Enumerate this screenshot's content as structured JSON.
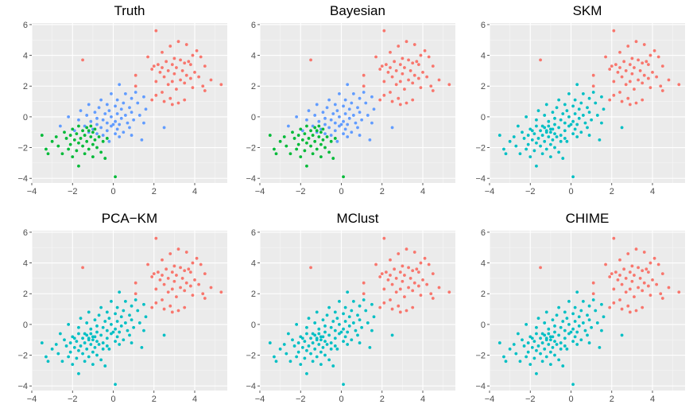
{
  "figure": {
    "background": "#ffffff",
    "panel_background": "#ebebeb"
  },
  "cluster_colors": {
    "A": "#F8766D",
    "B": "#619CFF",
    "C": "#00BA38",
    "C2": "#00BFC4"
  },
  "chart_data": [
    {
      "type": "scatter",
      "title": "Truth",
      "xlim": [
        -4,
        5.6
      ],
      "ylim": [
        -4.3,
        6.1
      ],
      "xticks": [
        -4,
        -2,
        0,
        2,
        4
      ],
      "yticks": [
        -4,
        -2,
        0,
        2,
        4,
        6
      ],
      "xtick_labels": [
        "−4",
        "−2",
        "0",
        "2",
        "4"
      ],
      "ytick_labels": [
        "−4",
        "−2",
        "0",
        "2",
        "4",
        "6"
      ],
      "grid": true,
      "color_map": {
        "A": "#F8766D",
        "B": "#619CFF",
        "C": "#00BA38"
      }
    },
    {
      "type": "scatter",
      "title": "Bayesian",
      "xlim": [
        -4,
        5.6
      ],
      "ylim": [
        -4.3,
        6.1
      ],
      "xticks": [
        -4,
        -2,
        0,
        2,
        4
      ],
      "yticks": [
        -4,
        -2,
        0,
        2,
        4,
        6
      ],
      "xtick_labels": [
        "−4",
        "−2",
        "0",
        "2",
        "4"
      ],
      "ytick_labels": [
        "−4",
        "−2",
        "0",
        "2",
        "4",
        "6"
      ],
      "grid": true,
      "color_map": {
        "A": "#F8766D",
        "B": "#619CFF",
        "C": "#00BA38"
      }
    },
    {
      "type": "scatter",
      "title": "SKM",
      "xlim": [
        -4,
        5.6
      ],
      "ylim": [
        -4.3,
        6.1
      ],
      "xticks": [
        -4,
        -2,
        0,
        2,
        4
      ],
      "yticks": [
        -4,
        -2,
        0,
        2,
        4,
        6
      ],
      "xtick_labels": [
        "−4",
        "−2",
        "0",
        "2",
        "4"
      ],
      "ytick_labels": [
        "−4",
        "−2",
        "0",
        "2",
        "4",
        "6"
      ],
      "grid": true,
      "color_map": {
        "A": "#F8766D",
        "B": "#00BFC4",
        "C": "#00BFC4"
      }
    },
    {
      "type": "scatter",
      "title": "PCA−KM",
      "xlim": [
        -4,
        5.6
      ],
      "ylim": [
        -4.3,
        6.1
      ],
      "xticks": [
        -4,
        -2,
        0,
        2,
        4
      ],
      "yticks": [
        -4,
        -2,
        0,
        2,
        4,
        6
      ],
      "xtick_labels": [
        "−4",
        "−2",
        "0",
        "2",
        "4"
      ],
      "ytick_labels": [
        "−4",
        "−2",
        "0",
        "2",
        "4",
        "6"
      ],
      "grid": true,
      "color_map": {
        "A": "#F8766D",
        "B": "#00BFC4",
        "C": "#00BFC4"
      }
    },
    {
      "type": "scatter",
      "title": "MClust",
      "xlim": [
        -4,
        5.6
      ],
      "ylim": [
        -4.3,
        6.1
      ],
      "xticks": [
        -4,
        -2,
        0,
        2,
        4
      ],
      "yticks": [
        -4,
        -2,
        0,
        2,
        4,
        6
      ],
      "xtick_labels": [
        "−4",
        "−2",
        "0",
        "2",
        "4"
      ],
      "ytick_labels": [
        "−4",
        "−2",
        "0",
        "2",
        "4",
        "6"
      ],
      "grid": true,
      "color_map": {
        "A": "#F8766D",
        "B": "#00BFC4",
        "C": "#00BFC4"
      }
    },
    {
      "type": "scatter",
      "title": "CHIME",
      "xlim": [
        -4,
        5.6
      ],
      "ylim": [
        -4.3,
        6.1
      ],
      "xticks": [
        -4,
        -2,
        0,
        2,
        4
      ],
      "yticks": [
        -4,
        -2,
        0,
        2,
        4,
        6
      ],
      "xtick_labels": [
        "−4",
        "−2",
        "0",
        "2",
        "4"
      ],
      "ytick_labels": [
        "−4",
        "−2",
        "0",
        "2",
        "4",
        "6"
      ],
      "grid": true,
      "color_map": {
        "A": "#F8766D",
        "B": "#00BFC4",
        "C": "#00BFC4"
      }
    }
  ],
  "points": [
    [
      2.1,
      5.6,
      "A"
    ],
    [
      3.2,
      4.9,
      "A"
    ],
    [
      3.6,
      4.7,
      "A"
    ],
    [
      2.8,
      4.6,
      "A"
    ],
    [
      4.1,
      4.3,
      "A"
    ],
    [
      2.4,
      4.2,
      "A"
    ],
    [
      3.9,
      4.0,
      "A"
    ],
    [
      1.7,
      3.9,
      "A"
    ],
    [
      4.3,
      3.9,
      "A"
    ],
    [
      3.0,
      3.8,
      "A"
    ],
    [
      3.3,
      3.7,
      "A"
    ],
    [
      3.7,
      3.6,
      "A"
    ],
    [
      2.6,
      3.6,
      "A"
    ],
    [
      -1.5,
      3.7,
      "A"
    ],
    [
      3.5,
      3.5,
      "A"
    ],
    [
      2.2,
      3.4,
      "A"
    ],
    [
      2.9,
      3.4,
      "A"
    ],
    [
      3.8,
      3.4,
      "A"
    ],
    [
      4.5,
      3.3,
      "A"
    ],
    [
      2.0,
      3.3,
      "A"
    ],
    [
      2.4,
      3.2,
      "A"
    ],
    [
      3.1,
      3.2,
      "A"
    ],
    [
      1.9,
      3.1,
      "A"
    ],
    [
      3.4,
      3.0,
      "A"
    ],
    [
      2.7,
      3.0,
      "A"
    ],
    [
      4.0,
      2.9,
      "A"
    ],
    [
      2.3,
      2.9,
      "A"
    ],
    [
      3.0,
      2.8,
      "A"
    ],
    [
      3.6,
      2.7,
      "A"
    ],
    [
      2.5,
      2.6,
      "A"
    ],
    [
      4.2,
      2.6,
      "A"
    ],
    [
      1.1,
      2.7,
      "A"
    ],
    [
      3.8,
      2.5,
      "A"
    ],
    [
      3.3,
      2.4,
      "A"
    ],
    [
      2.9,
      2.3,
      "A"
    ],
    [
      4.8,
      2.4,
      "A"
    ],
    [
      2.1,
      2.3,
      "A"
    ],
    [
      3.5,
      2.2,
      "A"
    ],
    [
      5.3,
      2.1,
      "A"
    ],
    [
      2.7,
      2.1,
      "A"
    ],
    [
      4.4,
      2.0,
      "A"
    ],
    [
      3.9,
      1.9,
      "A"
    ],
    [
      3.1,
      1.8,
      "A"
    ],
    [
      4.5,
      1.7,
      "A"
    ],
    [
      2.4,
      1.6,
      "A"
    ],
    [
      2.1,
      1.4,
      "A"
    ],
    [
      2.8,
      1.2,
      "A"
    ],
    [
      3.5,
      1.1,
      "A"
    ],
    [
      2.5,
      1.0,
      "A"
    ],
    [
      3.2,
      0.9,
      "A"
    ],
    [
      2.9,
      0.8,
      "A"
    ],
    [
      1.9,
      1.1,
      "A"
    ],
    [
      1.1,
      2.0,
      "A"
    ],
    [
      0.3,
      2.1,
      "B"
    ],
    [
      1.1,
      1.6,
      "B"
    ],
    [
      0.6,
      1.5,
      "B"
    ],
    [
      -0.1,
      1.5,
      "B"
    ],
    [
      1.5,
      1.3,
      "B"
    ],
    [
      0.9,
      1.2,
      "B"
    ],
    [
      0.2,
      1.1,
      "B"
    ],
    [
      -0.6,
      1.1,
      "B"
    ],
    [
      1.2,
      0.9,
      "B"
    ],
    [
      0.5,
      0.9,
      "B"
    ],
    [
      -0.3,
      0.8,
      "B"
    ],
    [
      -1.2,
      0.8,
      "B"
    ],
    [
      0.1,
      0.7,
      "B"
    ],
    [
      0.8,
      0.6,
      "B"
    ],
    [
      -0.7,
      0.6,
      "B"
    ],
    [
      1.6,
      0.5,
      "B"
    ],
    [
      0.4,
      0.5,
      "B"
    ],
    [
      -0.2,
      0.4,
      "B"
    ],
    [
      -1.6,
      0.4,
      "B"
    ],
    [
      0.9,
      0.3,
      "B"
    ],
    [
      -0.9,
      0.3,
      "B"
    ],
    [
      0.2,
      0.2,
      "B"
    ],
    [
      -0.4,
      0.2,
      "B"
    ],
    [
      1.3,
      0.1,
      "B"
    ],
    [
      -1.3,
      0.1,
      "B"
    ],
    [
      0.6,
      0.1,
      "B"
    ],
    [
      -0.1,
      0.0,
      "B"
    ],
    [
      -2.2,
      0.0,
      "B"
    ],
    [
      -0.8,
      -0.1,
      "B"
    ],
    [
      0.4,
      -0.1,
      "B"
    ],
    [
      1.0,
      -0.2,
      "B"
    ],
    [
      -0.5,
      -0.2,
      "B"
    ],
    [
      -1.7,
      -0.2,
      "B"
    ],
    [
      0.1,
      -0.3,
      "B"
    ],
    [
      -1.1,
      -0.3,
      "B"
    ],
    [
      0.7,
      -0.4,
      "B"
    ],
    [
      -0.3,
      -0.4,
      "B"
    ],
    [
      1.5,
      -0.4,
      "B"
    ],
    [
      -0.8,
      -0.5,
      "B"
    ],
    [
      0.3,
      -0.5,
      "B"
    ],
    [
      -1.4,
      -0.6,
      "B"
    ],
    [
      -0.1,
      -0.6,
      "B"
    ],
    [
      0.8,
      -0.7,
      "B"
    ],
    [
      -0.6,
      -0.7,
      "B"
    ],
    [
      2.5,
      -0.7,
      "B"
    ],
    [
      0.2,
      -0.8,
      "B"
    ],
    [
      -1.0,
      -0.8,
      "B"
    ],
    [
      -0.3,
      -0.9,
      "B"
    ],
    [
      0.5,
      -1.0,
      "B"
    ],
    [
      -0.8,
      -1.1,
      "B"
    ],
    [
      0.1,
      -1.1,
      "B"
    ],
    [
      -0.5,
      -1.2,
      "B"
    ],
    [
      1.4,
      -1.5,
      "B"
    ],
    [
      0.3,
      -1.3,
      "B"
    ],
    [
      -2.6,
      -0.6,
      "B"
    ],
    [
      -1.9,
      -0.9,
      "B"
    ],
    [
      -0.2,
      -1.6,
      "B"
    ],
    [
      0.9,
      -1.2,
      "B"
    ],
    [
      -1.2,
      -1.0,
      "B"
    ],
    [
      0.0,
      -0.5,
      "B"
    ],
    [
      -1.1,
      -0.6,
      "C"
    ],
    [
      -1.7,
      -0.6,
      "C"
    ],
    [
      -1.3,
      -0.7,
      "C"
    ],
    [
      -0.9,
      -0.8,
      "C"
    ],
    [
      -2.0,
      -0.8,
      "C"
    ],
    [
      -1.5,
      -0.9,
      "C"
    ],
    [
      -1.2,
      -0.9,
      "C"
    ],
    [
      -2.4,
      -1.0,
      "C"
    ],
    [
      -1.0,
      -1.0,
      "C"
    ],
    [
      -1.8,
      -1.1,
      "C"
    ],
    [
      -1.4,
      -1.2,
      "C"
    ],
    [
      -2.1,
      -1.2,
      "C"
    ],
    [
      -0.7,
      -1.3,
      "C"
    ],
    [
      -1.1,
      -1.3,
      "C"
    ],
    [
      -3.5,
      -1.2,
      "C"
    ],
    [
      -1.6,
      -1.4,
      "C"
    ],
    [
      -2.3,
      -1.4,
      "C"
    ],
    [
      -0.9,
      -1.5,
      "C"
    ],
    [
      -1.9,
      -1.5,
      "C"
    ],
    [
      -1.3,
      -1.6,
      "C"
    ],
    [
      -3.0,
      -1.6,
      "C"
    ],
    [
      -0.5,
      -1.6,
      "C"
    ],
    [
      -1.7,
      -1.7,
      "C"
    ],
    [
      -2.1,
      -1.8,
      "C"
    ],
    [
      -1.0,
      -1.8,
      "C"
    ],
    [
      -1.5,
      -1.9,
      "C"
    ],
    [
      -2.7,
      -1.9,
      "C"
    ],
    [
      -0.8,
      -2.0,
      "C"
    ],
    [
      -1.2,
      -2.1,
      "C"
    ],
    [
      -2.2,
      -2.1,
      "C"
    ],
    [
      -3.3,
      -2.1,
      "C"
    ],
    [
      -1.8,
      -2.2,
      "C"
    ],
    [
      -0.6,
      -2.3,
      "C"
    ],
    [
      -1.4,
      -2.4,
      "C"
    ],
    [
      -2.5,
      -2.4,
      "C"
    ],
    [
      -3.2,
      -2.4,
      "C"
    ],
    [
      -1.0,
      -2.6,
      "C"
    ],
    [
      -2.0,
      -2.6,
      "C"
    ],
    [
      -1.7,
      -3.2,
      "C"
    ],
    [
      0.1,
      -3.9,
      "C"
    ],
    [
      -0.3,
      -1.4,
      "C"
    ],
    [
      -2.8,
      -1.3,
      "C"
    ],
    [
      -0.4,
      -2.7,
      "C"
    ]
  ]
}
